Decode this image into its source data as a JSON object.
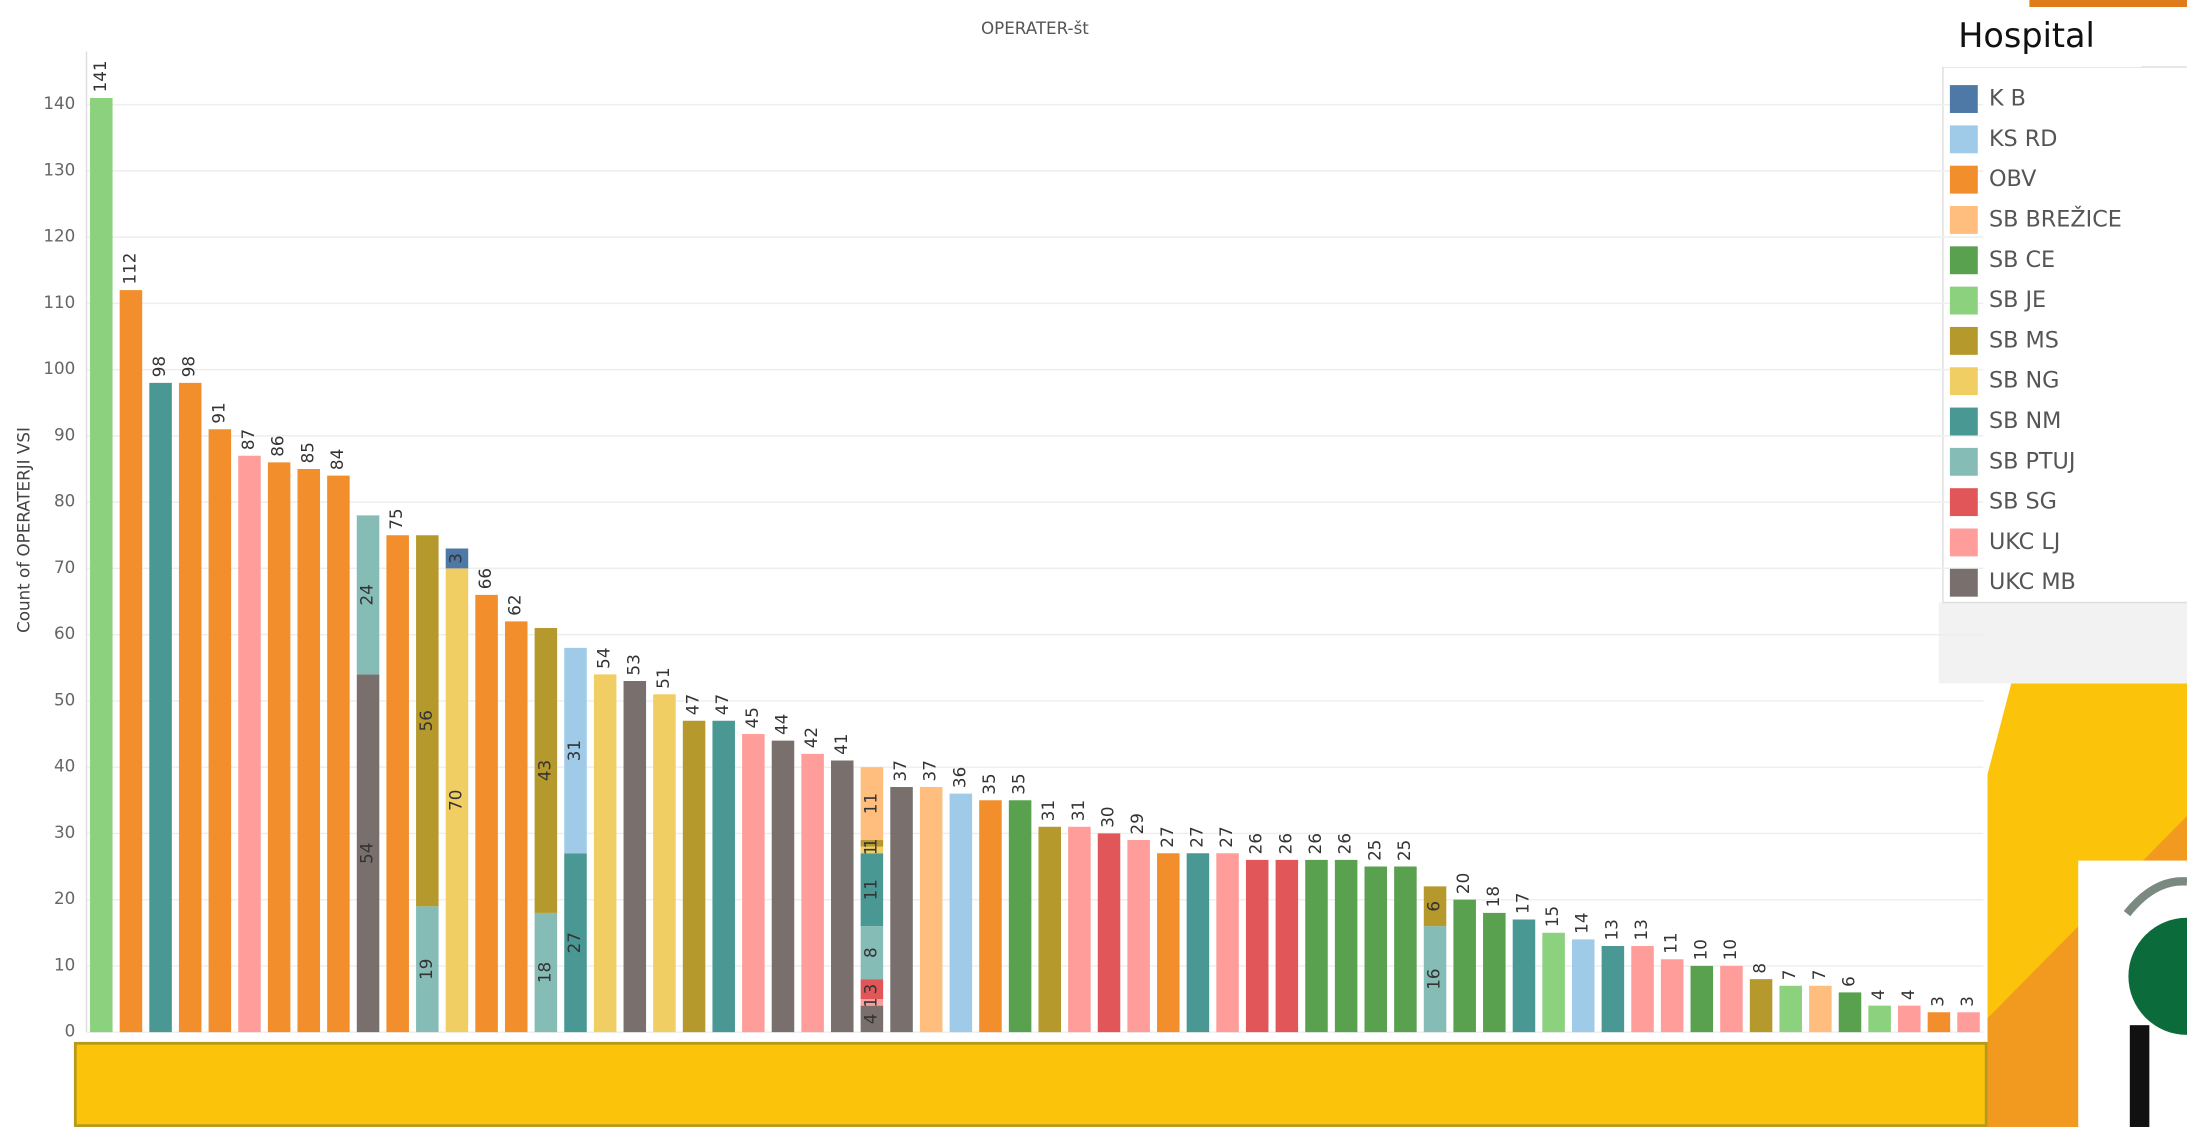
{
  "chart_data": {
    "type": "stacked_bar",
    "title": "OPERATER-št",
    "y_label": "Count of OPERATERJI VSI",
    "legend_title": "Hospital",
    "legend": "right",
    "grid": true,
    "ylim": [
      0,
      148
    ],
    "yticks": [
      0,
      10,
      20,
      30,
      40,
      50,
      60,
      70,
      80,
      90,
      100,
      110,
      120,
      130,
      140
    ],
    "categories": [
      null,
      null,
      null,
      null,
      null,
      null,
      null,
      null,
      null,
      null,
      null,
      null,
      null,
      null,
      null,
      null,
      null,
      null,
      null,
      null,
      null,
      null,
      null,
      null,
      null,
      null,
      null,
      null,
      null,
      null,
      null,
      null,
      null,
      null,
      null,
      null,
      null,
      null,
      null,
      null,
      null,
      null,
      null,
      null,
      null,
      null,
      null,
      null,
      null,
      null,
      null,
      null,
      null,
      null,
      null,
      null,
      null,
      null,
      null,
      null,
      null,
      null,
      null,
      null
    ],
    "series": [
      {
        "name": "K B",
        "color": "#4e79a7",
        "values": [
          null,
          null,
          null,
          null,
          null,
          null,
          null,
          null,
          null,
          null,
          null,
          null,
          3,
          null,
          null,
          null,
          null,
          null,
          null,
          null,
          null,
          null,
          null,
          null,
          null,
          null,
          null,
          null,
          null,
          null,
          null,
          null,
          null,
          null,
          null,
          null,
          null,
          null,
          null,
          null,
          null,
          null,
          null,
          null,
          null,
          null,
          null,
          null,
          null,
          null,
          null,
          null,
          null,
          null,
          null,
          null,
          null,
          null,
          null,
          null,
          null,
          null,
          null,
          null
        ]
      },
      {
        "name": "KS RD",
        "color": "#a0cbe8",
        "values": [
          null,
          null,
          null,
          null,
          null,
          null,
          null,
          null,
          null,
          null,
          null,
          null,
          null,
          null,
          null,
          null,
          31,
          null,
          null,
          null,
          null,
          null,
          null,
          null,
          null,
          null,
          null,
          null,
          null,
          36,
          null,
          null,
          null,
          null,
          null,
          null,
          null,
          null,
          null,
          null,
          null,
          null,
          null,
          null,
          null,
          null,
          null,
          null,
          null,
          null,
          14,
          null,
          null,
          null,
          null,
          null,
          null,
          null,
          null,
          null,
          null,
          null,
          null,
          null
        ]
      },
      {
        "name": "OBV",
        "color": "#f28e2b",
        "values": [
          null,
          112,
          null,
          98,
          91,
          null,
          86,
          85,
          84,
          null,
          75,
          null,
          null,
          66,
          62,
          null,
          null,
          null,
          null,
          null,
          null,
          null,
          null,
          null,
          null,
          null,
          null,
          null,
          null,
          null,
          35,
          null,
          null,
          null,
          null,
          null,
          27,
          null,
          null,
          null,
          null,
          null,
          null,
          null,
          null,
          null,
          null,
          null,
          null,
          null,
          null,
          null,
          null,
          null,
          null,
          null,
          null,
          null,
          null,
          null,
          null,
          null,
          3,
          null
        ]
      },
      {
        "name": "SB BREŽICE",
        "color": "#ffbe7d",
        "values": [
          null,
          null,
          null,
          null,
          null,
          null,
          null,
          null,
          null,
          null,
          null,
          null,
          null,
          null,
          null,
          null,
          null,
          null,
          null,
          null,
          null,
          null,
          null,
          null,
          null,
          null,
          11,
          null,
          37,
          null,
          null,
          null,
          null,
          null,
          null,
          null,
          null,
          null,
          null,
          null,
          null,
          null,
          null,
          null,
          null,
          null,
          null,
          null,
          null,
          null,
          null,
          null,
          null,
          null,
          null,
          null,
          null,
          null,
          7,
          null,
          null,
          null,
          null,
          null
        ]
      },
      {
        "name": "SB CE",
        "color": "#59a14f",
        "values": [
          null,
          null,
          null,
          null,
          null,
          null,
          null,
          null,
          null,
          null,
          null,
          null,
          null,
          null,
          null,
          null,
          null,
          null,
          null,
          null,
          null,
          null,
          null,
          null,
          null,
          null,
          null,
          null,
          null,
          null,
          null,
          35,
          null,
          null,
          null,
          null,
          null,
          null,
          null,
          null,
          null,
          26,
          26,
          25,
          25,
          null,
          20,
          18,
          null,
          null,
          null,
          null,
          null,
          null,
          10,
          null,
          null,
          null,
          null,
          6,
          null,
          null,
          null,
          null
        ]
      },
      {
        "name": "SB JE",
        "color": "#8cd17d",
        "values": [
          141,
          null,
          null,
          null,
          null,
          null,
          null,
          null,
          null,
          null,
          null,
          null,
          null,
          null,
          null,
          null,
          null,
          null,
          null,
          null,
          null,
          null,
          null,
          null,
          null,
          null,
          null,
          null,
          null,
          null,
          null,
          null,
          null,
          null,
          null,
          null,
          null,
          null,
          null,
          null,
          null,
          null,
          null,
          null,
          null,
          null,
          null,
          null,
          null,
          15,
          null,
          null,
          null,
          null,
          null,
          null,
          null,
          7,
          null,
          null,
          4,
          null,
          null,
          null
        ]
      },
      {
        "name": "SB MS",
        "color": "#b6992d",
        "values": [
          null,
          null,
          null,
          null,
          null,
          null,
          null,
          null,
          null,
          null,
          null,
          56,
          null,
          null,
          null,
          43,
          null,
          null,
          null,
          null,
          47,
          null,
          null,
          null,
          null,
          null,
          1,
          null,
          null,
          null,
          null,
          null,
          31,
          null,
          null,
          null,
          null,
          null,
          null,
          null,
          null,
          null,
          null,
          null,
          null,
          6,
          null,
          null,
          null,
          null,
          null,
          null,
          null,
          null,
          null,
          null,
          8,
          null,
          null,
          null,
          null,
          null,
          null,
          null
        ]
      },
      {
        "name": "SB NG",
        "color": "#f1ce63",
        "values": [
          null,
          null,
          null,
          null,
          null,
          null,
          null,
          null,
          null,
          null,
          null,
          null,
          70,
          null,
          null,
          null,
          null,
          54,
          null,
          51,
          null,
          null,
          null,
          null,
          null,
          null,
          1,
          null,
          null,
          null,
          null,
          null,
          null,
          null,
          null,
          null,
          null,
          null,
          null,
          null,
          null,
          null,
          null,
          null,
          null,
          null,
          null,
          null,
          null,
          null,
          null,
          null,
          null,
          null,
          null,
          null,
          null,
          null,
          null,
          null,
          null,
          null,
          null,
          null
        ]
      },
      {
        "name": "SB NM",
        "color": "#499894",
        "values": [
          null,
          null,
          98,
          null,
          null,
          null,
          null,
          null,
          null,
          null,
          null,
          null,
          null,
          null,
          null,
          null,
          27,
          null,
          null,
          null,
          null,
          47,
          null,
          null,
          null,
          null,
          11,
          null,
          null,
          null,
          null,
          null,
          null,
          null,
          null,
          null,
          null,
          27,
          null,
          null,
          null,
          null,
          null,
          null,
          null,
          null,
          null,
          null,
          17,
          null,
          null,
          13,
          null,
          null,
          null,
          null,
          null,
          null,
          null,
          null,
          null,
          null,
          null,
          null
        ]
      },
      {
        "name": "SB PTUJ",
        "color": "#86bcb6",
        "values": [
          null,
          null,
          null,
          null,
          null,
          null,
          null,
          null,
          null,
          24,
          null,
          19,
          null,
          null,
          null,
          18,
          null,
          null,
          null,
          null,
          null,
          null,
          null,
          null,
          null,
          null,
          8,
          null,
          null,
          null,
          null,
          null,
          null,
          null,
          null,
          null,
          null,
          null,
          null,
          null,
          null,
          null,
          null,
          null,
          null,
          16,
          null,
          null,
          null,
          null,
          null,
          null,
          null,
          null,
          null,
          null,
          null,
          null,
          null,
          null,
          null,
          null,
          null,
          null
        ]
      },
      {
        "name": "SB SG",
        "color": "#e15759",
        "values": [
          null,
          null,
          null,
          null,
          null,
          null,
          null,
          null,
          null,
          null,
          null,
          null,
          null,
          null,
          null,
          null,
          null,
          null,
          null,
          null,
          null,
          null,
          null,
          null,
          null,
          null,
          3,
          null,
          null,
          null,
          null,
          null,
          null,
          null,
          30,
          null,
          null,
          null,
          null,
          26,
          26,
          null,
          null,
          null,
          null,
          null,
          null,
          null,
          null,
          null,
          null,
          null,
          null,
          null,
          null,
          null,
          null,
          null,
          null,
          null,
          null,
          null,
          null,
          null
        ]
      },
      {
        "name": "UKC LJ",
        "color": "#ff9d9a",
        "values": [
          null,
          null,
          null,
          null,
          null,
          87,
          null,
          null,
          null,
          null,
          null,
          null,
          null,
          null,
          null,
          null,
          null,
          null,
          null,
          null,
          null,
          null,
          45,
          null,
          42,
          null,
          1,
          null,
          null,
          null,
          null,
          null,
          null,
          31,
          null,
          29,
          null,
          null,
          27,
          null,
          null,
          null,
          null,
          null,
          null,
          null,
          null,
          null,
          null,
          null,
          null,
          null,
          13,
          11,
          null,
          10,
          null,
          null,
          null,
          null,
          null,
          4,
          null,
          3
        ]
      },
      {
        "name": "UKC MB",
        "color": "#79706e",
        "values": [
          null,
          null,
          null,
          null,
          null,
          null,
          null,
          null,
          null,
          54,
          null,
          null,
          null,
          null,
          null,
          null,
          null,
          null,
          53,
          null,
          null,
          null,
          null,
          44,
          null,
          41,
          4,
          37,
          null,
          null,
          null,
          null,
          null,
          null,
          null,
          null,
          null,
          null,
          null,
          null,
          null,
          null,
          null,
          null,
          null,
          null,
          null,
          null,
          null,
          null,
          null,
          null,
          null,
          null,
          null,
          null,
          null,
          null,
          null,
          null,
          null,
          null,
          null,
          null
        ]
      }
    ]
  }
}
